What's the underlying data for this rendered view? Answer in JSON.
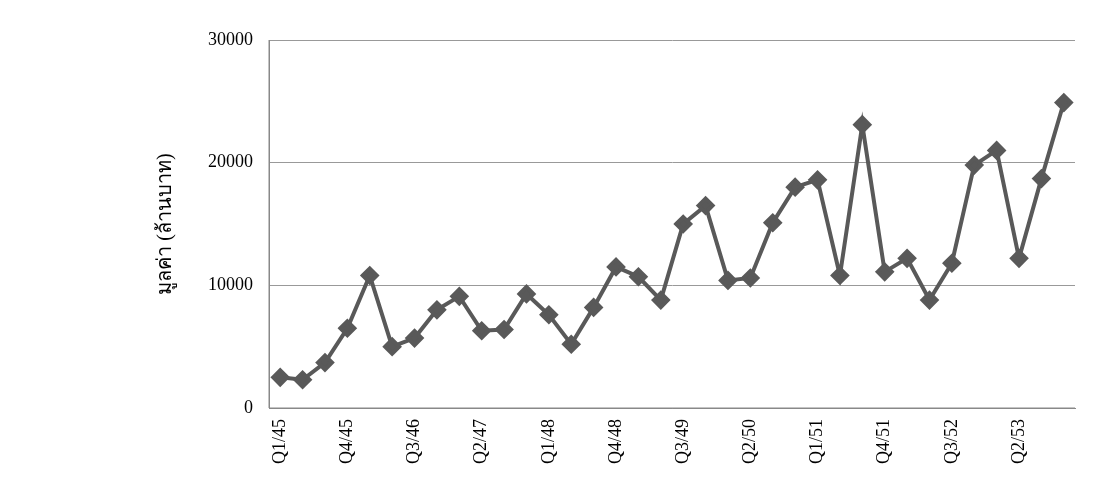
{
  "chart_data": {
    "type": "line",
    "y_label": "มูลค่า (ล้านบาท)",
    "categories": [
      "Q1/45",
      null,
      null,
      "Q4/45",
      null,
      null,
      "Q3/46",
      null,
      null,
      "Q2/47",
      null,
      null,
      "Q1/48",
      null,
      null,
      "Q4/48",
      null,
      null,
      "Q3/49",
      null,
      null,
      "Q2/50",
      null,
      null,
      "Q1/51",
      null,
      null,
      "Q4/51",
      null,
      null,
      "Q3/52",
      null,
      null,
      "Q2/53",
      null,
      null
    ],
    "values": [
      2500,
      2300,
      3700,
      6500,
      10800,
      5000,
      5700,
      8000,
      9100,
      6300,
      6400,
      9300,
      7600,
      5200,
      8200,
      11500,
      10700,
      8800,
      15000,
      16500,
      10400,
      10600,
      15100,
      18000,
      18600,
      10800,
      23100,
      11100,
      12200,
      8800,
      11800,
      19800,
      21000,
      12200,
      18700,
      24900
    ],
    "color": "#595959",
    "marker": "diamond",
    "line_style": "solid",
    "ylim": [
      0,
      30000
    ],
    "yticks": [
      0,
      10000,
      20000,
      30000
    ],
    "grid": true
  }
}
